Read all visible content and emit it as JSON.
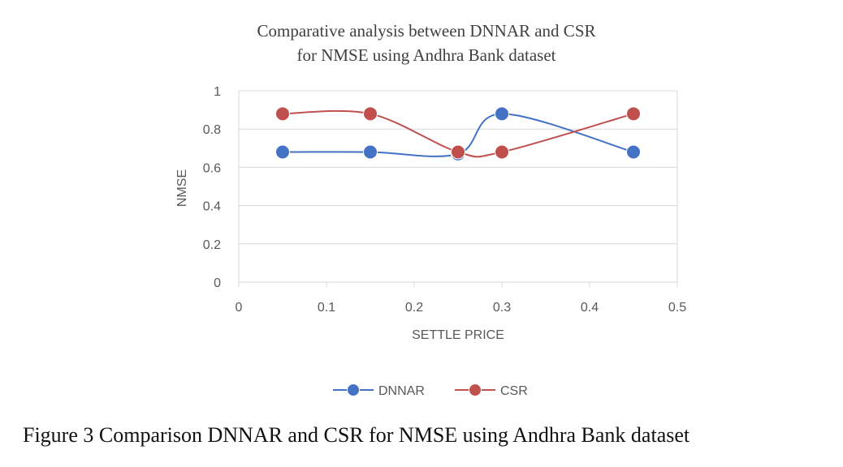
{
  "caption": "Figure 3 Comparison DNNAR and CSR for NMSE using Andhra Bank dataset",
  "chart_data": {
    "type": "scatter",
    "title_lines": [
      "Comparative  analysis between  DNNAR and  CSR",
      "for NMSE using Andhra  Bank dataset"
    ],
    "xlabel": "SETTLE PRICE",
    "ylabel": "NMSE",
    "xlim": [
      0,
      0.5
    ],
    "ylim": [
      0,
      1
    ],
    "x_ticks": [
      0,
      0.1,
      0.2,
      0.3,
      0.4,
      0.5
    ],
    "x_tick_labels": [
      "0",
      "0.1",
      "0.2",
      "0.3",
      "0.4",
      "0.5"
    ],
    "y_ticks": [
      0,
      0.2,
      0.4,
      0.6,
      0.8,
      1
    ],
    "y_tick_labels": [
      "0",
      "0.2",
      "0.4",
      "0.6",
      "0.8",
      "1"
    ],
    "grid": "horizontal",
    "smooth_lines": true,
    "markers": true,
    "legend_position": "bottom",
    "series": [
      {
        "name": "DNNAR",
        "color": "#4472C4",
        "x": [
          0.05,
          0.15,
          0.25,
          0.3,
          0.45
        ],
        "y": [
          0.68,
          0.68,
          0.67,
          0.88,
          0.68
        ]
      },
      {
        "name": "CSR",
        "color": "#C0504D",
        "x": [
          0.05,
          0.15,
          0.25,
          0.3,
          0.45
        ],
        "y": [
          0.88,
          0.88,
          0.68,
          0.68,
          0.88
        ]
      }
    ]
  }
}
